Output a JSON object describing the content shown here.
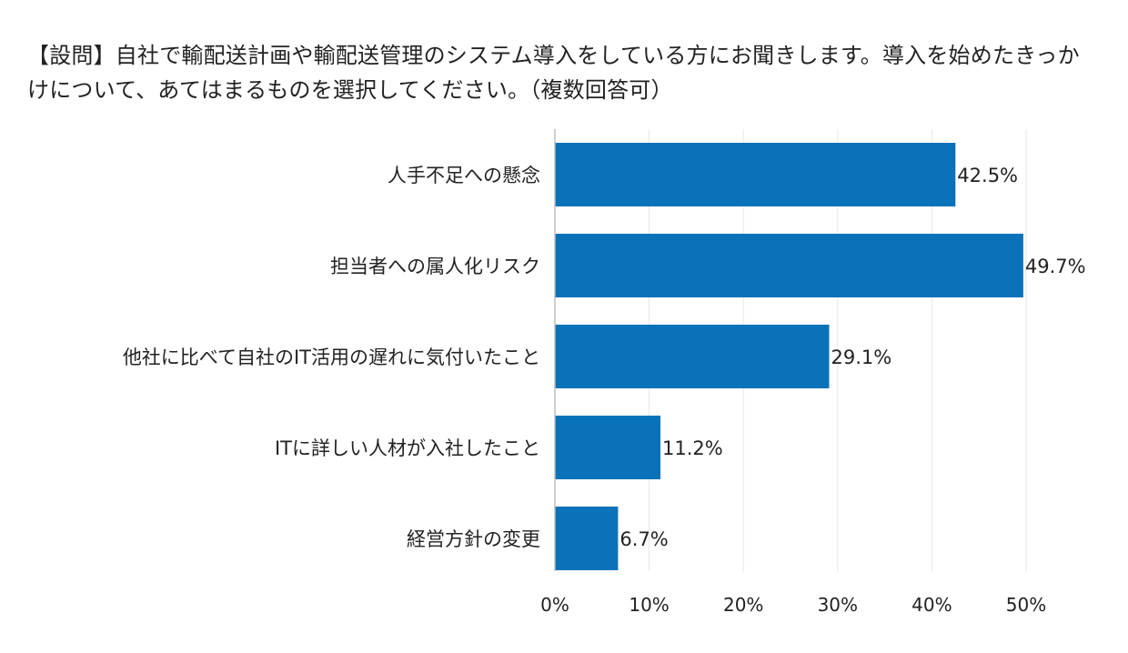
{
  "chart_data": {
    "type": "bar",
    "orientation": "horizontal",
    "title": "【設問】自社で輸配送計画や輸配送管理のシステム導入をしている方にお聞きします。導入を始めたきっかけについて、あてはまるものを選択してください。（複数回答可）",
    "categories": [
      "人手不足への懸念",
      "担当者への属人化リスク",
      "他社に比べて自社のIT活用の遅れに気付いたこと",
      "ITに詳しい人材が入社したこと",
      "経営方針の変更"
    ],
    "values": [
      42.5,
      49.7,
      29.1,
      11.2,
      6.7
    ],
    "value_labels": [
      "42.5%",
      "49.7%",
      "29.1%",
      "11.2%",
      "6.7%"
    ],
    "xlim": [
      0,
      50
    ],
    "ticks": [
      0,
      10,
      20,
      30,
      40,
      50
    ],
    "tick_labels": [
      "0%",
      "10%",
      "20%",
      "30%",
      "40%",
      "50%"
    ],
    "grid": true,
    "bar_color": "#0a72b9",
    "grid_color": "#e6e6e6",
    "axis_color": "#bdbdbd"
  }
}
